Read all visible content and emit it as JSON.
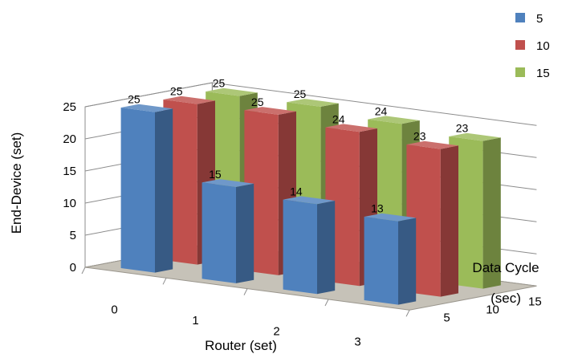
{
  "chart_data": {
    "type": "bar",
    "subtype": "3d-clustered-column",
    "title": "",
    "xlabel": "Router (set)",
    "ylabel": "End-Device (set)",
    "zlabel_lines": [
      "Data Cycle",
      "(sec)"
    ],
    "categories": [
      "0",
      "1",
      "2",
      "3"
    ],
    "depth_categories": [
      "5",
      "10",
      "15"
    ],
    "ylim": [
      0,
      25
    ],
    "yticks": [
      "0",
      "5",
      "10",
      "15",
      "20",
      "25"
    ],
    "grid": true,
    "legend_position": "right",
    "series": [
      {
        "name": "5",
        "color": "#4f81bd",
        "values": [
          25,
          15,
          14,
          13
        ]
      },
      {
        "name": "10",
        "color": "#c0504d",
        "values": [
          25,
          25,
          24,
          23
        ]
      },
      {
        "name": "15",
        "color": "#9bbb59",
        "values": [
          25,
          25,
          24,
          23
        ]
      }
    ],
    "floor_color": "#c6c2b8"
  }
}
